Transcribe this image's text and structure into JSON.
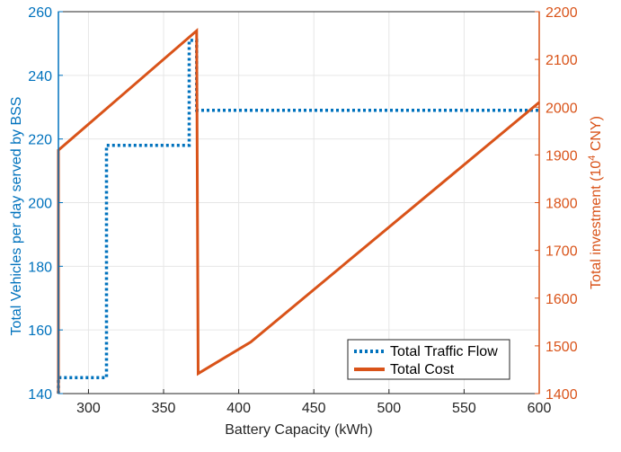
{
  "chart_data": {
    "type": "line",
    "xlabel": "Battery Capacity (kWh)",
    "ylabel_left": "Total Vehicles per day served by BSS",
    "ylabel_right_prefix": "Total investment (10",
    "ylabel_right_exp": "4",
    "ylabel_right_suffix": " CNY)",
    "xlim": [
      280,
      600
    ],
    "ylim_left": [
      140,
      260
    ],
    "ylim_right": [
      1400,
      2200
    ],
    "xticks": [
      300,
      350,
      400,
      450,
      500,
      550,
      600
    ],
    "yticks_left": [
      140,
      160,
      180,
      200,
      220,
      240,
      260
    ],
    "yticks_right": [
      1400,
      1500,
      1600,
      1700,
      1800,
      1900,
      2000,
      2100,
      2200
    ],
    "grid": true,
    "legend_position": "bottom-right",
    "colors": {
      "left_axis": "#0072BD",
      "right_axis": "#D95319",
      "traffic": "#0072BD",
      "cost": "#D95319",
      "grid": "#e6e6e6"
    },
    "series": [
      {
        "name": "Total Traffic Flow",
        "axis": "left",
        "style": "dotted",
        "x": [
          280,
          280,
          312,
          312,
          367,
          367,
          372,
          372,
          600
        ],
        "y": [
          140,
          145,
          145,
          218,
          218,
          251,
          251,
          229,
          229
        ]
      },
      {
        "name": "Total Cost",
        "axis": "right",
        "style": "solid",
        "x": [
          280,
          280,
          372,
          373,
          408,
          600
        ],
        "y": [
          1400,
          1910,
          2160,
          1442,
          1508,
          2010
        ]
      }
    ]
  }
}
